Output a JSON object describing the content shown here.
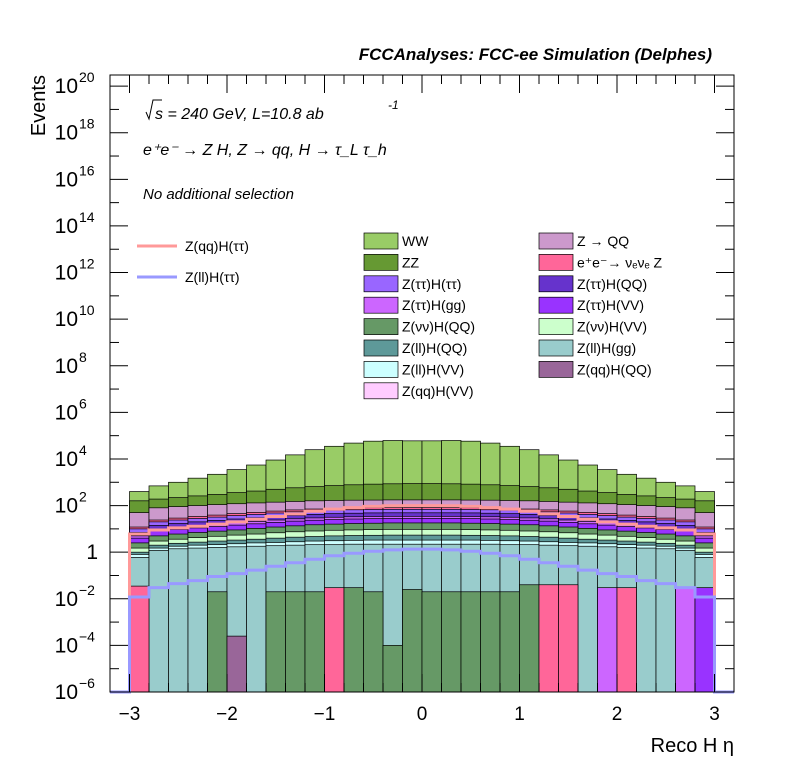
{
  "chart_data": {
    "type": "bar",
    "stacked": true,
    "log_y": true,
    "title": "FCCAnalyses: FCC-ee Simulation (Delphes)",
    "xlabel": "Reco H η",
    "ylabel": "Events",
    "xlim": [
      -3.2,
      3.2
    ],
    "ylim": [
      1e-06,
      3e+20
    ],
    "x_ticks": [
      "−3",
      "−2",
      "−1",
      "0",
      "1",
      "2",
      "3"
    ],
    "y_ticks": [
      {
        "value": 1e-06,
        "base": "10",
        "exp": "−6"
      },
      {
        "value": 0.0001,
        "base": "10",
        "exp": "−4"
      },
      {
        "value": 0.01,
        "base": "10",
        "exp": "−2"
      },
      {
        "value": 1,
        "base": "1",
        "exp": ""
      },
      {
        "value": 100.0,
        "base": "10",
        "exp": "2"
      },
      {
        "value": 10000.0,
        "base": "10",
        "exp": "4"
      },
      {
        "value": 1000000.0,
        "base": "10",
        "exp": "6"
      },
      {
        "value": 100000000.0,
        "base": "10",
        "exp": "8"
      },
      {
        "value": 10000000000.0,
        "base": "10",
        "exp": "10"
      },
      {
        "value": 1000000000000.0,
        "base": "10",
        "exp": "12"
      },
      {
        "value": 100000000000000.0,
        "base": "10",
        "exp": "14"
      },
      {
        "value": 1e+16,
        "base": "10",
        "exp": "16"
      },
      {
        "value": 1e+18,
        "base": "10",
        "exp": "18"
      },
      {
        "value": 1e+20,
        "base": "10",
        "exp": "20"
      }
    ],
    "annotations": {
      "energy": "s = 240 GeV, L=10.8 ab",
      "energy_exp": "-1",
      "process": "e⁺e⁻ → Z H, Z → qq, H → τ_L τ_h",
      "selection": "No additional selection"
    },
    "bin_edges": [
      -3.2,
      -3.0,
      -2.8,
      -2.6,
      -2.4,
      -2.2,
      -2.0,
      -1.8,
      -1.6,
      -1.4,
      -1.2,
      -1.0,
      -0.8,
      -0.6,
      -0.4,
      -0.2,
      0.0,
      0.2,
      0.4,
      0.6,
      0.8,
      1.0,
      1.2,
      1.4,
      1.6,
      1.8,
      2.0,
      2.2,
      2.4,
      2.6,
      2.8,
      3.0,
      3.2
    ],
    "boundaries": [
      {
        "name": "Z(ll)H(gg)",
        "color": "#99cccc",
        "values": [
          1e-06,
          0.6,
          1.2,
          1.4,
          1.5,
          1.6,
          1.7,
          1.8,
          1.9,
          2.0,
          2.1,
          2.1,
          2.2,
          2.2,
          2.2,
          2.2,
          2.2,
          2.2,
          2.2,
          2.2,
          2.1,
          2.1,
          2.0,
          1.9,
          1.8,
          1.7,
          1.6,
          1.5,
          1.4,
          1.2,
          0.6,
          1e-06
        ]
      },
      {
        "name": "Z(ll)H(VV)",
        "color": "#ccffff",
        "values": [
          1e-06,
          0.8,
          1.5,
          1.8,
          2.0,
          2.1,
          2.3,
          2.5,
          2.6,
          2.8,
          3.0,
          3.1,
          3.2,
          3.3,
          3.3,
          3.3,
          3.3,
          3.3,
          3.3,
          3.2,
          3.1,
          3.0,
          2.8,
          2.6,
          2.5,
          2.3,
          2.1,
          2.0,
          1.8,
          1.5,
          0.8,
          1e-06
        ]
      },
      {
        "name": "Z(ll)H(QQ)",
        "color": "#5e9999",
        "values": [
          1e-06,
          1.0,
          2.0,
          2.4,
          2.7,
          3.0,
          3.3,
          3.6,
          4.0,
          4.4,
          4.7,
          5.0,
          5.2,
          5.3,
          5.4,
          5.4,
          5.4,
          5.4,
          5.3,
          5.2,
          5.0,
          4.7,
          4.4,
          4.0,
          3.6,
          3.3,
          3.0,
          2.7,
          2.4,
          2.0,
          1.0,
          1e-06
        ]
      },
      {
        "name": "Z(νν)H(VV)",
        "color": "#ccffcc",
        "values": [
          1e-06,
          1.5,
          3.0,
          3.6,
          4.2,
          4.8,
          5.4,
          6.0,
          6.8,
          7.5,
          8.1,
          8.7,
          9.0,
          9.3,
          9.5,
          9.5,
          9.5,
          9.5,
          9.3,
          9.0,
          8.7,
          8.1,
          7.5,
          6.8,
          6.0,
          5.4,
          4.8,
          4.2,
          3.6,
          3.0,
          1.5,
          1e-06
        ]
      },
      {
        "name": "Z(νν)H(QQ)",
        "color": "#669966",
        "values": [
          1e-06,
          2.5,
          5.0,
          6.0,
          7.0,
          8.0,
          9.0,
          10.5,
          12.0,
          13.5,
          15.0,
          16.0,
          17.0,
          17.5,
          18.0,
          18.0,
          18.0,
          18.0,
          17.5,
          17.0,
          16.0,
          15.0,
          13.5,
          12.0,
          10.5,
          9.0,
          8.0,
          7.0,
          6.0,
          5.0,
          2.5,
          1e-06
        ]
      },
      {
        "name": "Z(ττ)H(VV)",
        "color": "#9933ff",
        "values": [
          1e-06,
          4.0,
          8.0,
          9.5,
          11.0,
          12.5,
          14.5,
          16.5,
          19.0,
          21.5,
          23.5,
          25.0,
          26.5,
          27.5,
          28.0,
          28.0,
          28.0,
          28.0,
          27.5,
          26.5,
          25.0,
          23.5,
          21.5,
          19.0,
          16.5,
          14.5,
          12.5,
          11.0,
          9.5,
          8.0,
          4.0,
          1e-06
        ]
      },
      {
        "name": "Z(ττ)H(gg)",
        "color": "#cc66ff",
        "values": [
          1e-06,
          5.0,
          10.0,
          12.0,
          14.0,
          16.0,
          18.5,
          21.0,
          24.0,
          27.0,
          29.5,
          31.5,
          33.0,
          34.0,
          34.5,
          34.5,
          34.5,
          34.5,
          34.0,
          33.0,
          31.5,
          29.5,
          27.0,
          24.0,
          21.0,
          18.5,
          16.0,
          14.0,
          12.0,
          10.0,
          5.0,
          1e-06
        ]
      },
      {
        "name": "Z(ττ)H(QQ)",
        "color": "#6633cc",
        "values": [
          1e-06,
          7.0,
          14.0,
          17.0,
          20.0,
          23.0,
          26.5,
          30.0,
          34.0,
          38.0,
          42.0,
          45.0,
          47.0,
          48.5,
          49.0,
          49.0,
          49.0,
          49.0,
          48.5,
          47.0,
          45.0,
          42.0,
          38.0,
          34.0,
          30.0,
          26.5,
          23.0,
          20.0,
          17.0,
          14.0,
          7.0,
          1e-06
        ]
      },
      {
        "name": "Z(ττ)H(ττ)",
        "color": "#9966ff",
        "values": [
          1e-06,
          10.0,
          20.0,
          24.0,
          28.0,
          32.0,
          37.0,
          42.0,
          48.0,
          54.0,
          59.0,
          63.0,
          66.0,
          68.0,
          69.0,
          69.0,
          69.0,
          69.0,
          68.0,
          66.0,
          63.0,
          59.0,
          54.0,
          48.0,
          42.0,
          37.0,
          32.0,
          28.0,
          24.0,
          20.0,
          10.0,
          1e-06
        ]
      },
      {
        "name": "e⁺e⁻→ νₑνₑ Z",
        "color": "#ff6699",
        "values": [
          1e-06,
          12.0,
          24.0,
          29.0,
          34.0,
          39.0,
          45.0,
          51.0,
          58.0,
          65.0,
          71.0,
          76.0,
          79.0,
          81.0,
          82.0,
          82.0,
          82.0,
          82.0,
          81.0,
          79.0,
          76.0,
          71.0,
          65.0,
          58.0,
          51.0,
          45.0,
          39.0,
          34.0,
          29.0,
          24.0,
          12.0,
          1e-06
        ]
      },
      {
        "name": "Z → QQ",
        "color": "#cc99cc",
        "values": [
          1e-06,
          50.0,
          80.0,
          90.0,
          100.0,
          110.0,
          120.0,
          130.0,
          140.0,
          150.0,
          160.0,
          165.0,
          170.0,
          172.0,
          175.0,
          175.0,
          175.0,
          175.0,
          172.0,
          170.0,
          165.0,
          160.0,
          150.0,
          140.0,
          130.0,
          120.0,
          110.0,
          100.0,
          90.0,
          80.0,
          50.0,
          1e-06
        ]
      },
      {
        "name": "ZZ",
        "color": "#669933",
        "values": [
          1e-06,
          160.0,
          190.0,
          220.0,
          260.0,
          300.0,
          360.0,
          420.0,
          500.0,
          580.0,
          650.0,
          720.0,
          780.0,
          830.0,
          860.0,
          880.0,
          880.0,
          860.0,
          830.0,
          780.0,
          720.0,
          650.0,
          580.0,
          500.0,
          420.0,
          360.0,
          300.0,
          260.0,
          220.0,
          190.0,
          160.0,
          1e-06
        ]
      },
      {
        "name": "WW",
        "color": "#99cc66",
        "values": [
          1e-06,
          400.0,
          700.0,
          1000.0,
          1500.0,
          2200.0,
          3500.0,
          5500.0,
          9000.0,
          15000.0,
          25000.0,
          35000.0,
          48000.0,
          58000.0,
          62000.0,
          60000.0,
          60000.0,
          62000.0,
          58000.0,
          48000.0,
          35000.0,
          25000.0,
          15000.0,
          9000.0,
          5500.0,
          3500.0,
          2200.0,
          1500.0,
          1000.0,
          700.0,
          400.0,
          1e-06
        ]
      }
    ],
    "floor_bins": [
      {
        "index": 1,
        "value": 0.035,
        "color": "#ff6699"
      },
      {
        "index": 5,
        "value": 0.02,
        "color": "#669966"
      },
      {
        "index": 6,
        "value": 0.00025,
        "color": "#996699"
      },
      {
        "index": 8,
        "value": 0.02,
        "color": "#669966"
      },
      {
        "index": 9,
        "value": 0.02,
        "color": "#669966"
      },
      {
        "index": 10,
        "value": 0.02,
        "color": "#669966"
      },
      {
        "index": 11,
        "value": 0.03,
        "color": "#ff6699"
      },
      {
        "index": 12,
        "value": 0.03,
        "color": "#669966"
      },
      {
        "index": 13,
        "value": 0.02,
        "color": "#669966"
      },
      {
        "index": 14,
        "value": 0.0001,
        "color": "#669966"
      },
      {
        "index": 15,
        "value": 0.025,
        "color": "#669966"
      },
      {
        "index": 16,
        "value": 0.02,
        "color": "#669966"
      },
      {
        "index": 17,
        "value": 0.02,
        "color": "#669966"
      },
      {
        "index": 18,
        "value": 0.02,
        "color": "#669966"
      },
      {
        "index": 19,
        "value": 0.02,
        "color": "#669966"
      },
      {
        "index": 20,
        "value": 0.02,
        "color": "#669966"
      },
      {
        "index": 21,
        "value": 0.04,
        "color": "#669966"
      },
      {
        "index": 22,
        "value": 0.04,
        "color": "#ff6699"
      },
      {
        "index": 23,
        "value": 0.04,
        "color": "#ff6699"
      },
      {
        "index": 25,
        "value": 0.03,
        "color": "#cc66ff"
      },
      {
        "index": 26,
        "value": 0.03,
        "color": "#ff6699"
      },
      {
        "index": 29,
        "value": 0.03,
        "color": "#cc66ff"
      },
      {
        "index": 30,
        "value": 0.03,
        "color": "#9933ff"
      }
    ],
    "lines": [
      {
        "name": "Z(qq)H(ττ)",
        "color": "#ff9999",
        "values": [
          1e-06,
          6.0,
          9.0,
          11.0,
          13.0,
          16.0,
          20.0,
          26.0,
          34.0,
          44.0,
          57.0,
          70.0,
          82.0,
          92.0,
          98.0,
          100.0,
          100.0,
          98.0,
          92.0,
          82.0,
          70.0,
          57.0,
          44.0,
          34.0,
          26.0,
          20.0,
          16.0,
          13.0,
          11.0,
          9.0,
          6.0,
          1e-06
        ]
      },
      {
        "name": "Z(ll)H(ττ)",
        "color": "#9999ff",
        "values": [
          1e-06,
          0.012,
          0.03,
          0.045,
          0.06,
          0.09,
          0.12,
          0.17,
          0.25,
          0.35,
          0.5,
          0.7,
          0.9,
          1.1,
          1.25,
          1.35,
          1.35,
          1.25,
          1.1,
          0.9,
          0.7,
          0.5,
          0.35,
          0.25,
          0.17,
          0.12,
          0.09,
          0.06,
          0.045,
          0.03,
          0.012,
          1e-06
        ]
      }
    ],
    "legend_lines": [
      "Z(qq)H(ττ)",
      "Z(ll)H(ττ)"
    ],
    "legend_fills": [
      {
        "label": "WW",
        "color": "#99cc66"
      },
      {
        "label": "Z → QQ",
        "color": "#cc99cc"
      },
      {
        "label": "ZZ",
        "color": "#669933"
      },
      {
        "label": "e⁺e⁻→ νₑνₑ Z",
        "color": "#ff6699"
      },
      {
        "label": "Z(ττ)H(ττ)",
        "color": "#9966ff"
      },
      {
        "label": "Z(ττ)H(QQ)",
        "color": "#6633cc"
      },
      {
        "label": "Z(ττ)H(gg)",
        "color": "#cc66ff"
      },
      {
        "label": "Z(ττ)H(VV)",
        "color": "#9933ff"
      },
      {
        "label": "Z(νν)H(QQ)",
        "color": "#669966"
      },
      {
        "label": "Z(νν)H(VV)",
        "color": "#ccffcc"
      },
      {
        "label": "Z(ll)H(QQ)",
        "color": "#5e9999"
      },
      {
        "label": "Z(ll)H(gg)",
        "color": "#99cccc"
      },
      {
        "label": "Z(ll)H(VV)",
        "color": "#ccffff"
      },
      {
        "label": "Z(qq)H(QQ)",
        "color": "#996699"
      },
      {
        "label": "Z(qq)H(VV)",
        "color": "#ffccff"
      }
    ]
  }
}
